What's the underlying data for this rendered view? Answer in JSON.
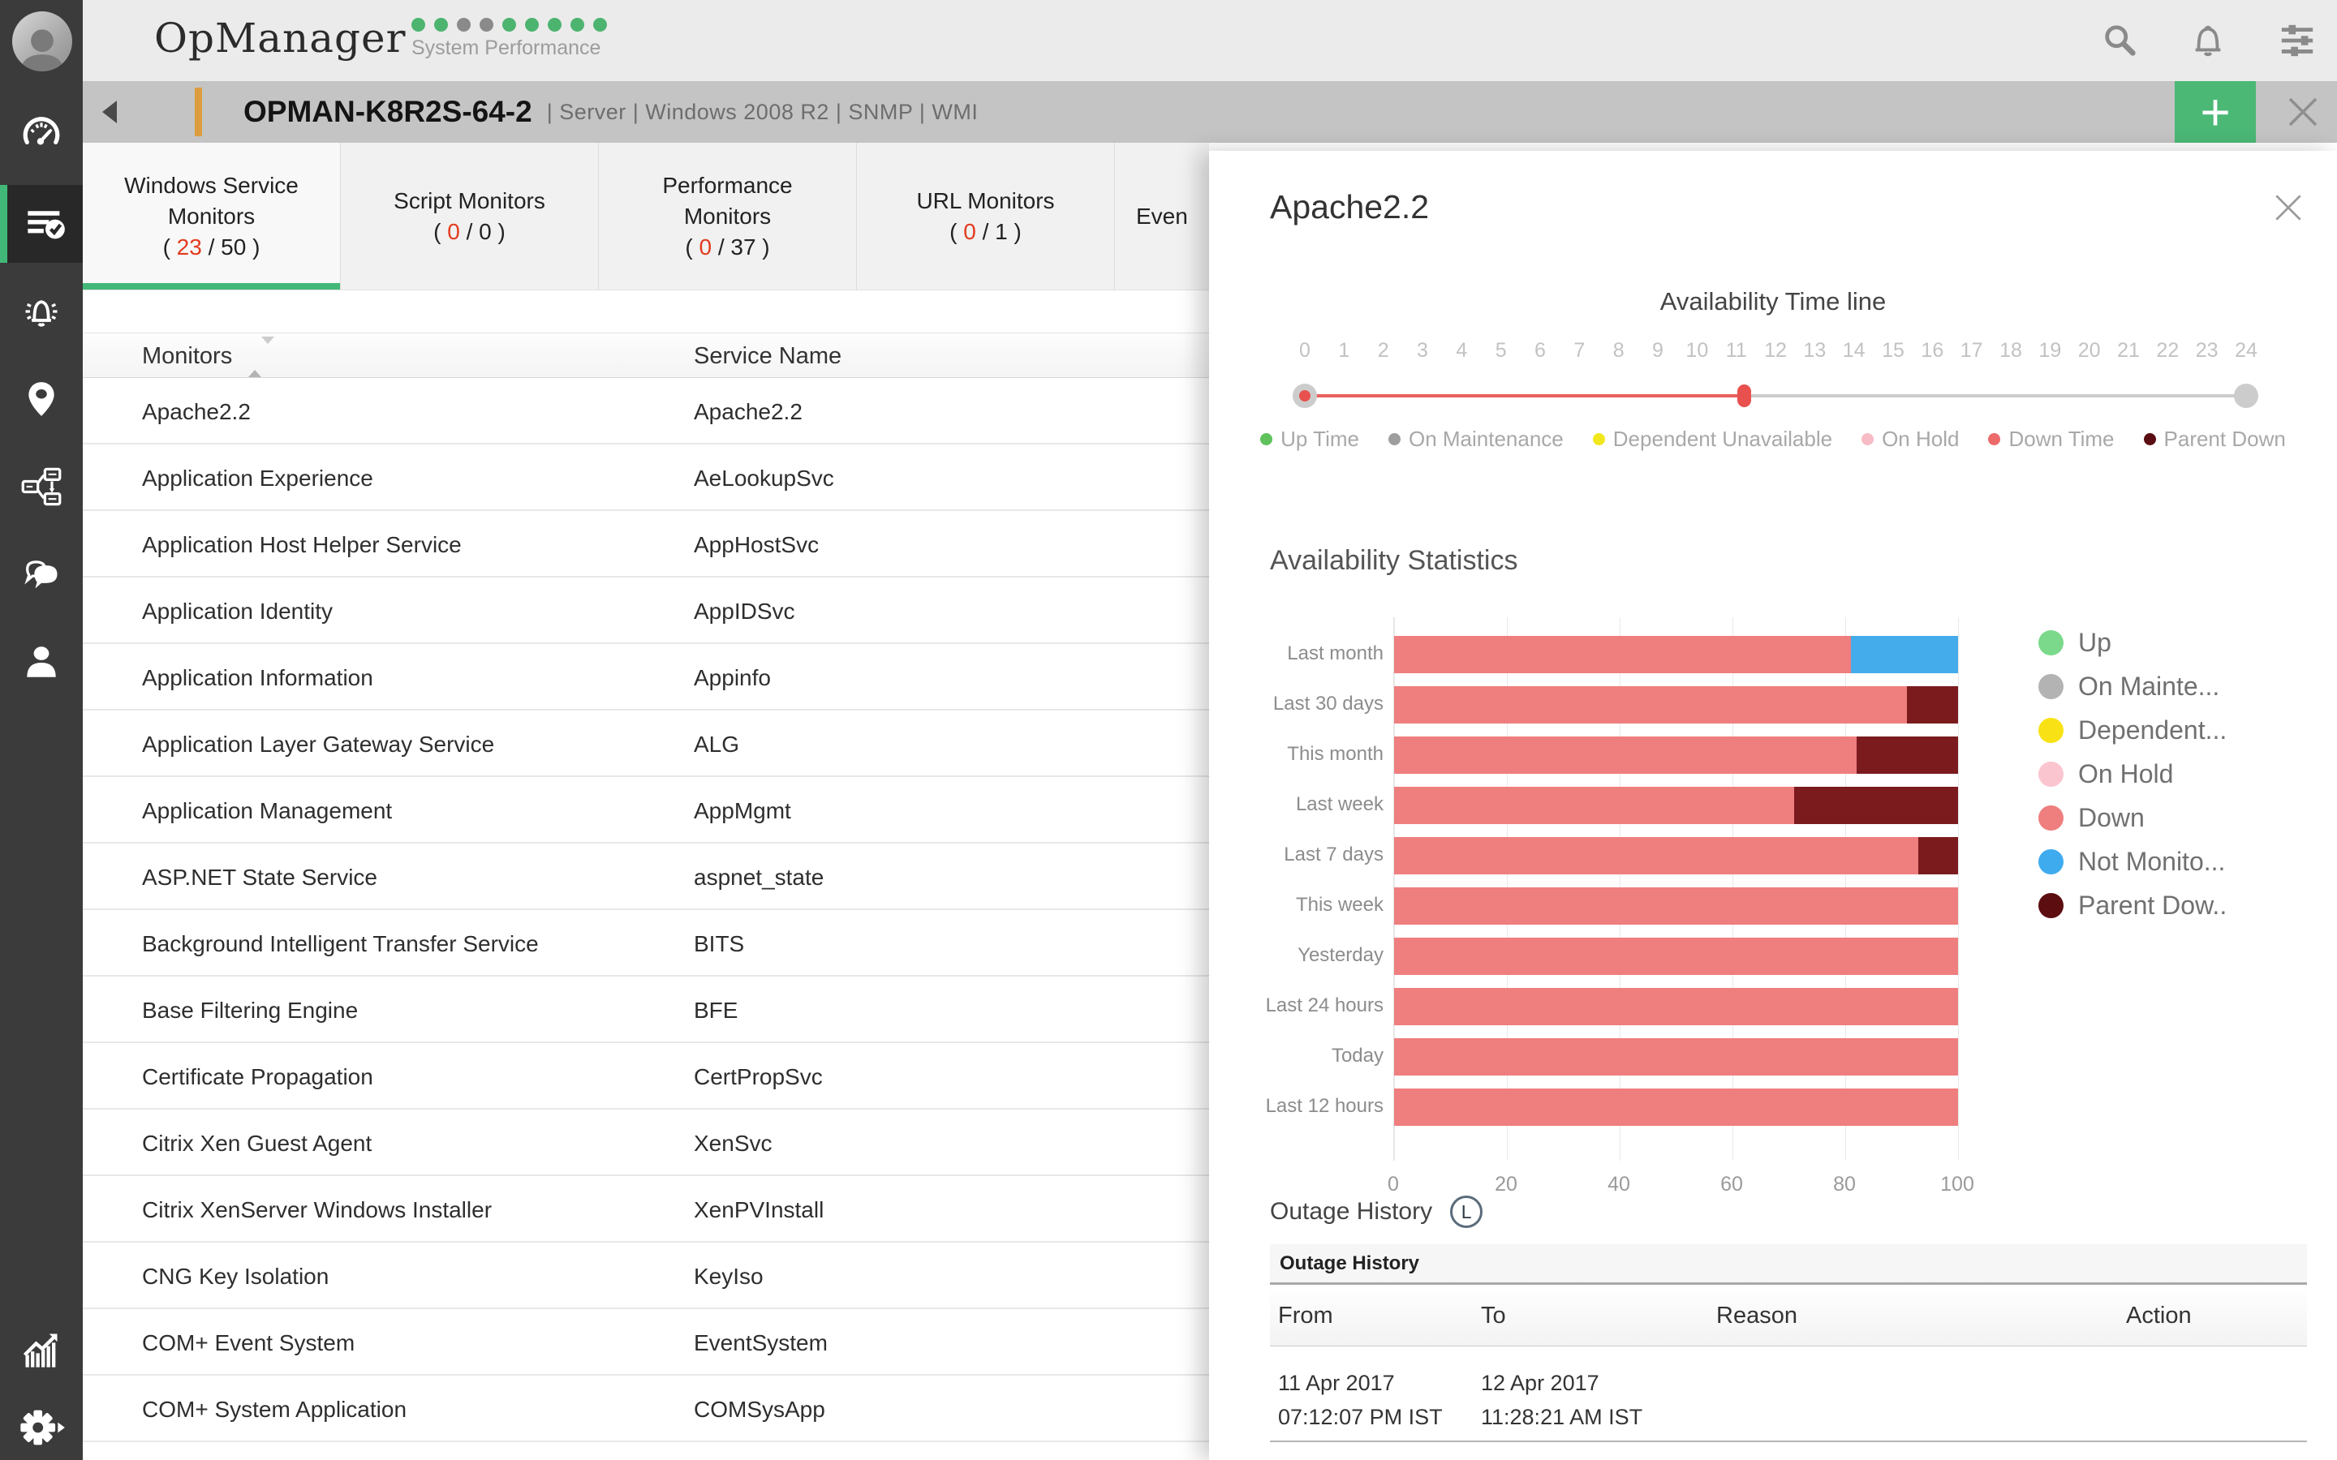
{
  "topbar": {
    "logo": "OpManager",
    "subtitle": "System Performance",
    "dot_colors": [
      "#4cb46f",
      "#4cb46f",
      "#8a8a8a",
      "#8a8a8a",
      "#4cb46f",
      "#4cb46f",
      "#4cb46f",
      "#4cb46f",
      "#4cb46f"
    ],
    "right_icons": [
      "search",
      "notifications",
      "settings-sliders"
    ]
  },
  "device_bar": {
    "name": "OPMAN-K8R2S-64-2",
    "meta": "| Server | Windows 2008 R2  | SNMP  | WMI",
    "accent_color": "#dd9c3f",
    "add_label": "+"
  },
  "tabs": [
    {
      "title_lines": [
        "Windows Service",
        "Monitors"
      ],
      "count_current": "23",
      "count_total": "50",
      "active": true
    },
    {
      "title_lines": [
        "Script Monitors"
      ],
      "count_current": "0",
      "count_total": "0",
      "active": false
    },
    {
      "title_lines": [
        "Performance",
        "Monitors"
      ],
      "count_current": "0",
      "count_total": "37",
      "active": false
    },
    {
      "title_lines": [
        "URL Monitors"
      ],
      "count_current": "0",
      "count_total": "1",
      "active": false
    },
    {
      "title_lines": [
        "Even"
      ],
      "active": false,
      "truncated": true
    }
  ],
  "monitor_table": {
    "columns": [
      "Monitors",
      "Service Name"
    ],
    "rows": [
      {
        "monitor": "Apache2.2",
        "service": "Apache2.2"
      },
      {
        "monitor": "Application Experience",
        "service": "AeLookupSvc"
      },
      {
        "monitor": "Application Host Helper Service",
        "service": "AppHostSvc"
      },
      {
        "monitor": "Application Identity",
        "service": "AppIDSvc"
      },
      {
        "monitor": "Application Information",
        "service": "Appinfo"
      },
      {
        "monitor": "Application Layer Gateway Service",
        "service": "ALG"
      },
      {
        "monitor": "Application Management",
        "service": "AppMgmt"
      },
      {
        "monitor": "ASP.NET State Service",
        "service": "aspnet_state"
      },
      {
        "monitor": "Background Intelligent Transfer Service",
        "service": "BITS"
      },
      {
        "monitor": "Base Filtering Engine",
        "service": "BFE"
      },
      {
        "monitor": "Certificate Propagation",
        "service": "CertPropSvc"
      },
      {
        "monitor": "Citrix Xen Guest Agent",
        "service": "XenSvc"
      },
      {
        "monitor": "Citrix XenServer Windows Installer",
        "service": "XenPVInstall"
      },
      {
        "monitor": "CNG Key Isolation",
        "service": "KeyIso"
      },
      {
        "monitor": "COM+ Event System",
        "service": "EventSystem"
      },
      {
        "monitor": "COM+ System Application",
        "service": "COMSysApp"
      }
    ]
  },
  "panel": {
    "title": "Apache2.2",
    "timeline": {
      "heading": "Availability Time line",
      "tick_min": 0,
      "tick_max": 24,
      "down_from": 0,
      "down_to": 11.2,
      "red_color": "#e9605e",
      "gray_color": "#cccccc",
      "legend": [
        {
          "label": "Up Time",
          "color": "#5fc25c"
        },
        {
          "label": "On Maintenance",
          "color": "#9e9e9e"
        },
        {
          "label": "Dependent Unavailable",
          "color": "#f2e71d"
        },
        {
          "label": "On Hold",
          "color": "#f7bcc6"
        },
        {
          "label": "Down Time",
          "color": "#ec6a6a"
        },
        {
          "label": "Parent Down",
          "color": "#5a0e12"
        }
      ]
    },
    "stats_heading": "Availability Statistics",
    "chart_legend": [
      {
        "label": "Up",
        "color": "#7bd98b"
      },
      {
        "label": "On Mainte...",
        "color": "#b3b3b3"
      },
      {
        "label": "Dependent...",
        "color": "#f8e215"
      },
      {
        "label": "On Hold",
        "color": "#fbc5d0"
      },
      {
        "label": "Down",
        "color": "#ef7e7e"
      },
      {
        "label": "Not Monito...",
        "color": "#3fabef"
      },
      {
        "label": "Parent Dow..",
        "color": "#5c0d10"
      }
    ],
    "outage": {
      "heading": "Outage History",
      "badge": "L",
      "table_title": "Outage History",
      "columns": [
        "From",
        "To",
        "Reason",
        "Action"
      ],
      "rows": [
        {
          "from_line1": "11 Apr 2017",
          "from_line2": "07:12:07 PM IST",
          "to_line1": "12 Apr 2017",
          "to_line2": "11:28:21 AM IST",
          "reason": "",
          "action": ""
        }
      ]
    }
  },
  "chart_data": {
    "type": "bar",
    "orientation": "horizontal",
    "stacked": true,
    "title": "Availability Statistics",
    "categories": [
      "Last month",
      "Last 30 days",
      "This month",
      "Last week",
      "Last 7 days",
      "This week",
      "Yesterday",
      "Last 24 hours",
      "Today",
      "Last 12 hours"
    ],
    "series": [
      {
        "name": "Down",
        "color": "#ef7e7e",
        "values": [
          81,
          91,
          82,
          71,
          93,
          100,
          100,
          100,
          100,
          100
        ]
      },
      {
        "name": "Not Monitored",
        "color": "#45acec",
        "values": [
          19,
          0,
          0,
          0,
          0,
          0,
          0,
          0,
          0,
          0
        ]
      },
      {
        "name": "Parent Down",
        "color": "#7b1b1e",
        "values": [
          0,
          9,
          18,
          29,
          7,
          0,
          0,
          0,
          0,
          0
        ]
      }
    ],
    "xlim": [
      0,
      100
    ],
    "xticks": [
      0,
      20,
      40,
      60,
      80,
      100
    ],
    "grid": true,
    "legend_position": "right"
  },
  "sidebar": {
    "icons": [
      "dashboard-gauge",
      "monitor-list",
      "alarm-bell",
      "location-pin",
      "workflow",
      "chat",
      "user",
      "reports-chart",
      "settings-gear"
    ],
    "active": "monitor-list",
    "accent": "#42b878"
  }
}
